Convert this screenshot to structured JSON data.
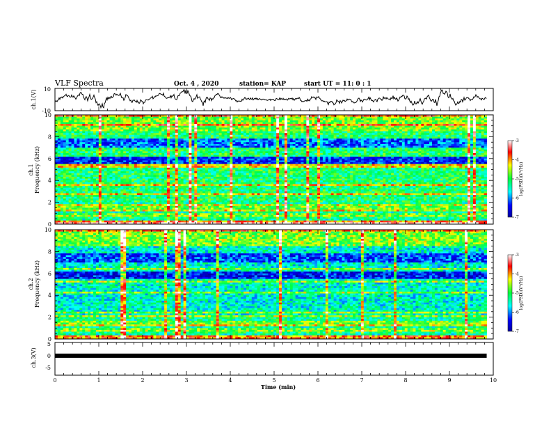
{
  "header": {
    "title": "VLF Spectra",
    "date": "Oct. 4 , 2020",
    "station": "station= KAP",
    "start": "start  UT =   11: 0  : 1"
  },
  "colors": {
    "waveform": "#000000",
    "spec_low": "#0000c8",
    "spec_high": "#ff0000"
  },
  "chart_data": [
    {
      "type": "line",
      "panel": "ch1-waveform",
      "ylabel": "ch.1(V)",
      "ylim": [
        -10,
        10
      ],
      "yticks": [
        "10",
        "-10"
      ],
      "xlim": [
        0,
        10
      ]
    },
    {
      "type": "heatmap",
      "panel": "ch1-spectrogram",
      "ylabel": "ch.1\nFrequency  (kHz)",
      "ylabel_top": "ch.1",
      "ylabel_bottom": "Frequency  (kHz)",
      "ylim": [
        0,
        10
      ],
      "yticks": [
        "0",
        "2",
        "4",
        "6",
        "8",
        "10"
      ],
      "xlim": [
        0,
        9.85
      ],
      "colorbar": {
        "label": "log(PSD)(V²/Hz)",
        "range": [
          -7,
          -3
        ],
        "ticks": [
          "-3",
          "-4",
          "-5",
          "-6",
          "-7"
        ]
      }
    },
    {
      "type": "heatmap",
      "panel": "ch2-spectrogram",
      "ylabel_top": "ch.2",
      "ylabel_bottom": "Frequency  (kHz)",
      "ylim": [
        0,
        10
      ],
      "yticks": [
        "0",
        "2",
        "4",
        "6",
        "8",
        "10"
      ],
      "xlim": [
        0,
        9.85
      ],
      "colorbar": {
        "label": "log(PSD)(V²/Hz)",
        "range": [
          -7,
          -3
        ],
        "ticks": [
          "-3",
          "-4",
          "-5",
          "-6",
          "-7"
        ]
      }
    },
    {
      "type": "line",
      "panel": "ch3-waveform",
      "ylabel": "ch.3(V)",
      "ylim": [
        -5,
        5
      ],
      "yticks": [
        "5",
        "0",
        "-5"
      ],
      "xlim": [
        0,
        10
      ]
    }
  ],
  "xaxis": {
    "label": "Time  (min)",
    "ticks": [
      "0",
      "1",
      "2",
      "3",
      "4",
      "5",
      "6",
      "7",
      "8",
      "9",
      "10"
    ]
  }
}
